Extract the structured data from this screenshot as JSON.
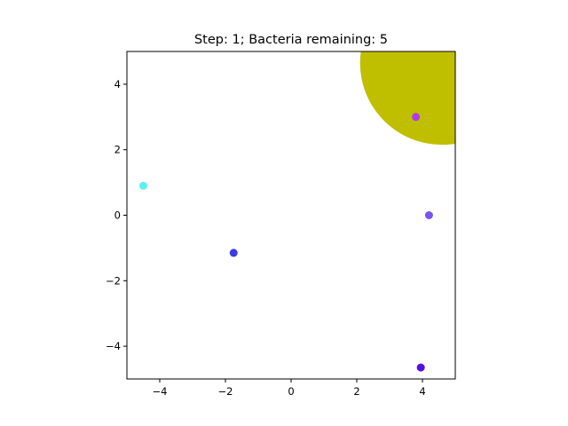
{
  "title": "Step: 1; Bacteria remaining: 5",
  "chart_data": {
    "type": "scatter",
    "title": "Step: 1; Bacteria remaining: 5",
    "xlabel": "",
    "ylabel": "",
    "xlim": [
      -5,
      5
    ],
    "ylim": [
      -5,
      5
    ],
    "grid": false,
    "xticks": [
      -4,
      -2,
      0,
      2,
      4
    ],
    "yticks": [
      -4,
      -2,
      0,
      2,
      4
    ],
    "xtick_labels": [
      "−4",
      "−2",
      "0",
      "2",
      "4"
    ],
    "ytick_labels": [
      "−4",
      "−2",
      "0",
      "2",
      "4"
    ],
    "predator": {
      "x": 4.6,
      "y": 4.65,
      "radius": 2.5,
      "color": "#bfbf00"
    },
    "bacteria": [
      {
        "x": -4.5,
        "y": 0.9,
        "color": "#5ef0f0"
      },
      {
        "x": -1.75,
        "y": -1.15,
        "color": "#3a3ae8"
      },
      {
        "x": 3.8,
        "y": 3.0,
        "color": "#b23ae8"
      },
      {
        "x": 4.2,
        "y": 0.0,
        "color": "#7a55f0"
      },
      {
        "x": 3.95,
        "y": -4.65,
        "color": "#5510e8"
      }
    ]
  }
}
